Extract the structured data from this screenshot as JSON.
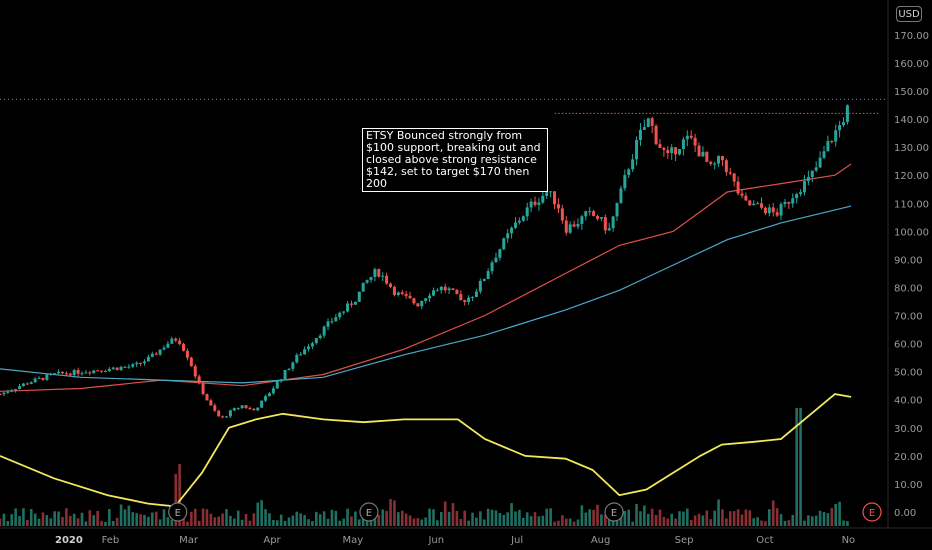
{
  "currency_label": "USD",
  "annotation": "ETSY Bounced strongly from $100 support, breaking out and closed above strong resistance $142, set to target $170 then 200",
  "earnings_label": "E",
  "chart_data": {
    "type": "candlestick",
    "ticker": "ETSY",
    "y_ticks": [
      "170.00",
      "160.00",
      "150.00",
      "140.00",
      "130.00",
      "120.00",
      "110.00",
      "100.00",
      "90.00",
      "80.00",
      "70.00",
      "60.00",
      "50.00",
      "40.00",
      "30.00",
      "20.00",
      "10.00",
      "0.00"
    ],
    "ylim": [
      0,
      176
    ],
    "x_ticks": [
      "2020",
      "Feb",
      "Mar",
      "Apr",
      "May",
      "Jun",
      "Jul",
      "Aug",
      "Sep",
      "Oct",
      "No"
    ],
    "x_tick_days": [
      0,
      31,
      60,
      91,
      121,
      152,
      182,
      213,
      244,
      274,
      305
    ],
    "xlim_days": [
      -10,
      316
    ],
    "resistance_level": 142,
    "current_price_level": 147,
    "earnings_days": [
      56,
      127,
      218,
      301
    ],
    "closes": [
      {
        "day": -10,
        "close": 42
      },
      {
        "day": 0,
        "close": 46
      },
      {
        "day": 10,
        "close": 49
      },
      {
        "day": 20,
        "close": 50
      },
      {
        "day": 30,
        "close": 51
      },
      {
        "day": 40,
        "close": 52
      },
      {
        "day": 46,
        "close": 55
      },
      {
        "day": 52,
        "close": 60
      },
      {
        "day": 56,
        "close": 62
      },
      {
        "day": 60,
        "close": 55
      },
      {
        "day": 64,
        "close": 45
      },
      {
        "day": 68,
        "close": 38
      },
      {
        "day": 72,
        "close": 33
      },
      {
        "day": 76,
        "close": 36
      },
      {
        "day": 80,
        "close": 38
      },
      {
        "day": 84,
        "close": 36
      },
      {
        "day": 88,
        "close": 40
      },
      {
        "day": 92,
        "close": 45
      },
      {
        "day": 96,
        "close": 50
      },
      {
        "day": 100,
        "close": 55
      },
      {
        "day": 105,
        "close": 60
      },
      {
        "day": 110,
        "close": 65
      },
      {
        "day": 115,
        "close": 70
      },
      {
        "day": 118,
        "close": 72
      },
      {
        "day": 122,
        "close": 76
      },
      {
        "day": 126,
        "close": 82
      },
      {
        "day": 130,
        "close": 86
      },
      {
        "day": 133,
        "close": 83
      },
      {
        "day": 137,
        "close": 78
      },
      {
        "day": 141,
        "close": 76
      },
      {
        "day": 145,
        "close": 74
      },
      {
        "day": 149,
        "close": 78
      },
      {
        "day": 153,
        "close": 80
      },
      {
        "day": 157,
        "close": 79
      },
      {
        "day": 161,
        "close": 75
      },
      {
        "day": 165,
        "close": 77
      },
      {
        "day": 169,
        "close": 82
      },
      {
        "day": 173,
        "close": 90
      },
      {
        "day": 177,
        "close": 96
      },
      {
        "day": 181,
        "close": 102
      },
      {
        "day": 185,
        "close": 107
      },
      {
        "day": 189,
        "close": 111
      },
      {
        "day": 193,
        "close": 114
      },
      {
        "day": 197,
        "close": 110
      },
      {
        "day": 200,
        "close": 101
      },
      {
        "day": 204,
        "close": 103
      },
      {
        "day": 208,
        "close": 106
      },
      {
        "day": 212,
        "close": 105
      },
      {
        "day": 216,
        "close": 100
      },
      {
        "day": 220,
        "close": 112
      },
      {
        "day": 224,
        "close": 125
      },
      {
        "day": 228,
        "close": 135
      },
      {
        "day": 231,
        "close": 140
      },
      {
        "day": 234,
        "close": 132
      },
      {
        "day": 238,
        "close": 126
      },
      {
        "day": 242,
        "close": 131
      },
      {
        "day": 246,
        "close": 133
      },
      {
        "day": 250,
        "close": 128
      },
      {
        "day": 254,
        "close": 122
      },
      {
        "day": 258,
        "close": 126
      },
      {
        "day": 262,
        "close": 118
      },
      {
        "day": 266,
        "close": 110
      },
      {
        "day": 270,
        "close": 109
      },
      {
        "day": 274,
        "close": 108
      },
      {
        "day": 278,
        "close": 106
      },
      {
        "day": 282,
        "close": 110
      },
      {
        "day": 286,
        "close": 115
      },
      {
        "day": 290,
        "close": 118
      },
      {
        "day": 294,
        "close": 124
      },
      {
        "day": 298,
        "close": 132
      },
      {
        "day": 302,
        "close": 138
      },
      {
        "day": 306,
        "close": 146
      }
    ],
    "series": [
      {
        "name": "",
        "color": "#e0504a",
        "points": [
          [
            -10,
            43
          ],
          [
            20,
            44
          ],
          [
            50,
            47
          ],
          [
            80,
            45
          ],
          [
            110,
            49
          ],
          [
            140,
            58
          ],
          [
            170,
            70
          ],
          [
            200,
            85
          ],
          [
            220,
            95
          ],
          [
            240,
            100
          ],
          [
            260,
            114
          ],
          [
            280,
            117
          ],
          [
            300,
            120
          ],
          [
            306,
            124
          ]
        ]
      },
      {
        "name": "",
        "color": "#4aa9c9",
        "points": [
          [
            -10,
            51
          ],
          [
            20,
            48
          ],
          [
            50,
            47
          ],
          [
            80,
            46
          ],
          [
            110,
            48
          ],
          [
            140,
            56
          ],
          [
            170,
            63
          ],
          [
            200,
            72
          ],
          [
            220,
            79
          ],
          [
            240,
            88
          ],
          [
            260,
            97
          ],
          [
            280,
            103
          ],
          [
            306,
            109
          ]
        ]
      },
      {
        "name": "",
        "color": "#f2e85a",
        "points": [
          [
            -10,
            20
          ],
          [
            10,
            12
          ],
          [
            30,
            6
          ],
          [
            45,
            3
          ],
          [
            55,
            2
          ],
          [
            65,
            14
          ],
          [
            75,
            30
          ],
          [
            85,
            33
          ],
          [
            95,
            35
          ],
          [
            110,
            33
          ],
          [
            125,
            32
          ],
          [
            140,
            33
          ],
          [
            160,
            33
          ],
          [
            170,
            26
          ],
          [
            185,
            20
          ],
          [
            200,
            19
          ],
          [
            210,
            15
          ],
          [
            220,
            6
          ],
          [
            230,
            8
          ],
          [
            250,
            20
          ],
          [
            258,
            24
          ],
          [
            270,
            25
          ],
          [
            280,
            26
          ],
          [
            295,
            38
          ],
          [
            300,
            42
          ],
          [
            306,
            41
          ]
        ]
      }
    ]
  }
}
